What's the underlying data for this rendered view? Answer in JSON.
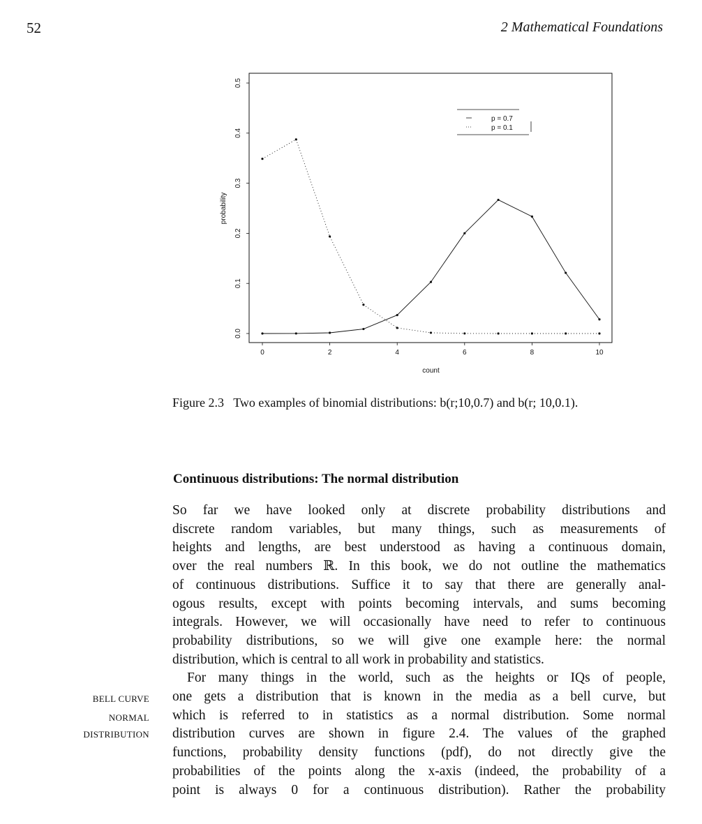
{
  "header": {
    "page_number": "52",
    "running_head": "2 Mathematical Foundations"
  },
  "figure": {
    "caption_label": "Figure 2.3",
    "caption_text": "Two examples of binomial distributions: b(r;10,0.7) and b(r; 10,0.1).",
    "legend": [
      "p = 0.7",
      "p = 0.1"
    ]
  },
  "chart_data": {
    "type": "line",
    "title": "",
    "xlabel": "count",
    "ylabel": "probability",
    "xlim": [
      0,
      10
    ],
    "ylim": [
      0,
      0.5
    ],
    "x_ticks": [
      "0",
      "2",
      "4",
      "6",
      "8",
      "10"
    ],
    "y_ticks": [
      "0.0",
      "0.1",
      "0.2",
      "0.3",
      "0.4",
      "0.5"
    ],
    "x": [
      0,
      1,
      2,
      3,
      4,
      5,
      6,
      7,
      8,
      9,
      10
    ],
    "series": [
      {
        "name": "p = 0.7",
        "style": "solid",
        "values": [
          0.0,
          0.0001,
          0.0014,
          0.009,
          0.0368,
          0.1029,
          0.2001,
          0.2668,
          0.2335,
          0.1211,
          0.0282
        ]
      },
      {
        "name": "p = 0.1",
        "style": "dotted",
        "values": [
          0.3487,
          0.3874,
          0.1937,
          0.0574,
          0.0112,
          0.0015,
          0.0001,
          0.0,
          0.0,
          0.0,
          0.0
        ]
      }
    ],
    "legend_position": "top-right",
    "grid": false
  },
  "section": {
    "title": "Continuous distributions: The normal distribution"
  },
  "paragraphs": [
    {
      "lines": [
        "So far we have looked only at discrete probability distributions and",
        "discrete random variables, but many things, such as measurements of",
        "heights and lengths, are best understood as having a continuous domain,",
        "over the real numbers ℝ. In this book, we do not outline the mathematics",
        "of continuous distributions. Suffice it to say that there are generally anal-",
        "ogous results, except with points becoming intervals, and sums becoming",
        "integrals. However, we will occasionally have need to refer to continuous",
        "probability distributions, so we will give one example here: the normal",
        "distribution, which is central to all work in probability and statistics."
      ]
    },
    {
      "lines": [
        "For many things in the world, such as the heights or IQs of people,",
        "one gets a distribution that is known in the media as a bell curve, but",
        "which is referred to in statistics as a normal distribution. Some normal",
        "distribution curves are shown in figure 2.4. The values of the graphed",
        "functions, probability density functions (pdf), do not directly give the",
        "probabilities of the points along the x-axis (indeed, the probability of a",
        "point is always 0 for a continuous distribution). Rather the probability"
      ]
    }
  ],
  "margin_notes": {
    "bell_curve": "BELL CURVE",
    "normal": "NORMAL",
    "distribution": "DISTRIBUTION"
  }
}
